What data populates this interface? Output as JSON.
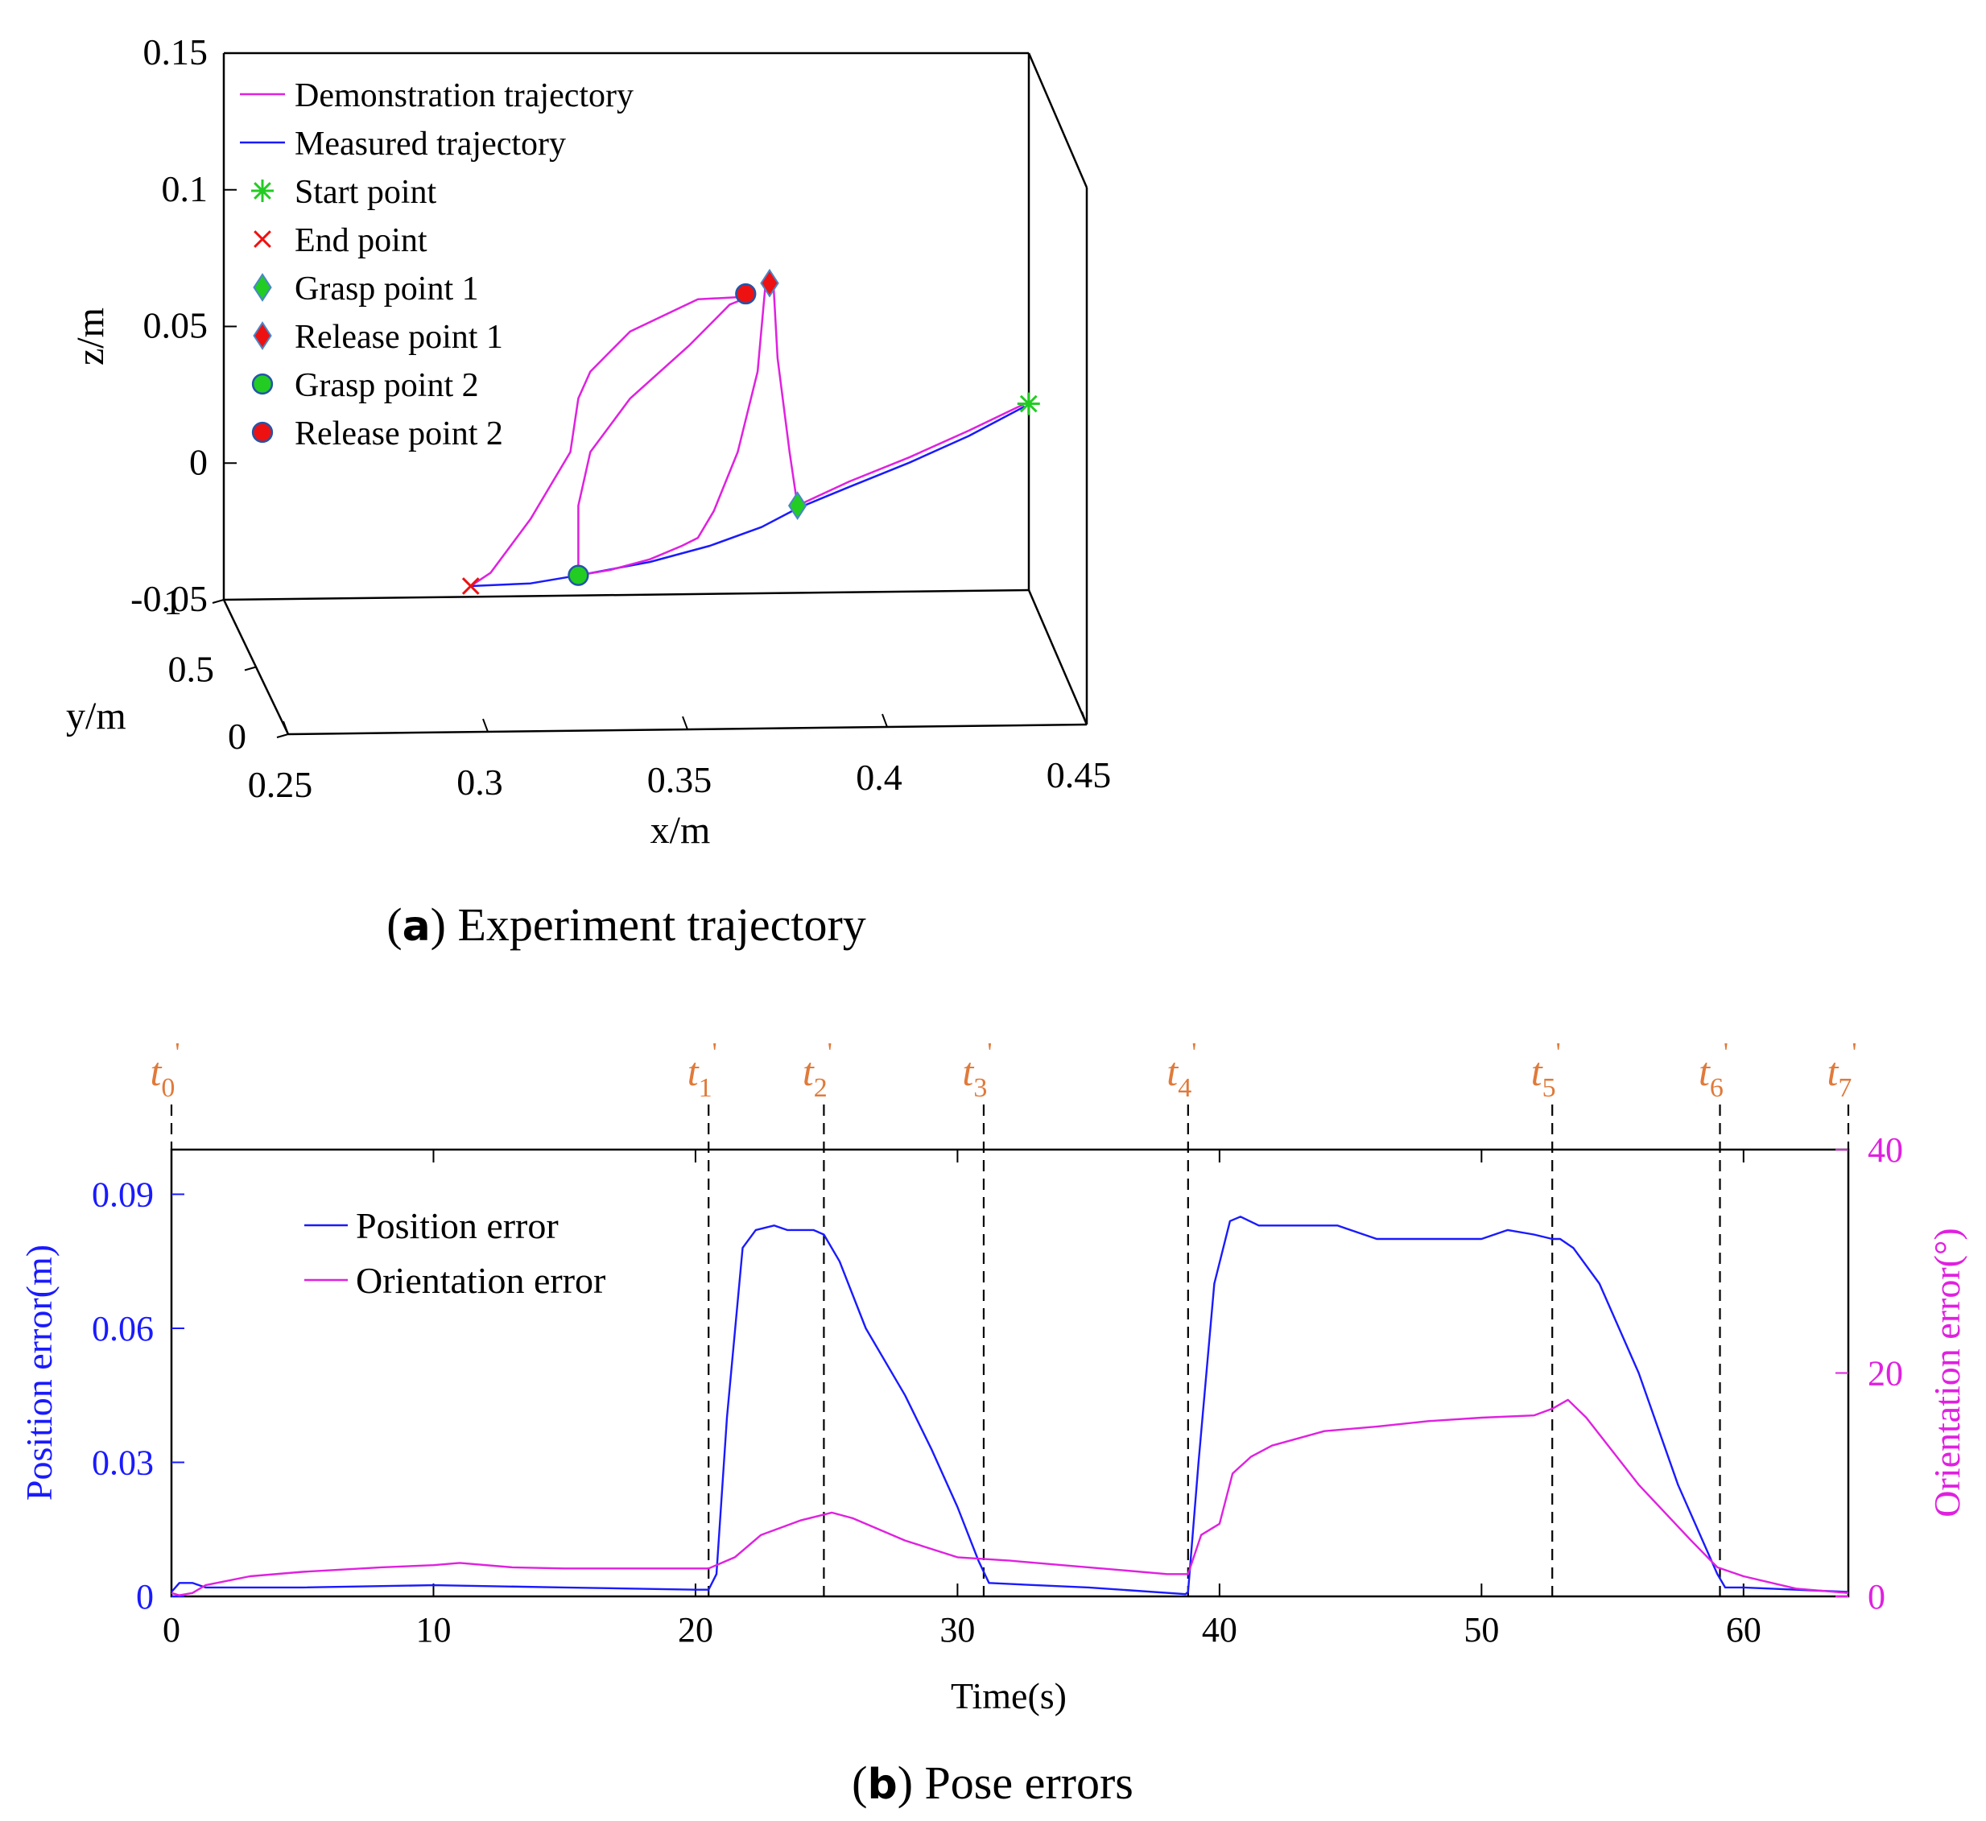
{
  "figure": {
    "caption_a_letter": "a",
    "caption_a_text": "Experiment trajectory",
    "caption_b_letter": "b",
    "caption_b_text": "Pose errors"
  },
  "colors": {
    "blue": "#1a1aff",
    "magenta": "#e020e0",
    "orange": "#e07a3a",
    "green": "#22cc22",
    "red": "#ee1111",
    "black": "#000000"
  },
  "chart_data": [
    {
      "id": "trajectory",
      "type": "line",
      "title": "Experiment trajectory",
      "xlabel": "x/m",
      "ylabel": "y/m",
      "zlabel": "z/m",
      "xlim": [
        0.25,
        0.45
      ],
      "ylim": [
        0,
        1
      ],
      "zlim": [
        -0.05,
        0.15
      ],
      "x_ticks": [
        "0.25",
        "0.3",
        "0.35",
        "0.4",
        "0.45"
      ],
      "y_ticks": [
        "0",
        "0.5",
        "1"
      ],
      "z_ticks": [
        "-0.05",
        "0",
        "0.05",
        "0.1",
        "0.15"
      ],
      "legend": [
        {
          "label": "Demonstration trajectory",
          "marker": "line",
          "color": "#e020e0"
        },
        {
          "label": "Measured trajectory",
          "marker": "line",
          "color": "#1a1aff"
        },
        {
          "label": "Start point",
          "marker": "star",
          "color": "#22cc22"
        },
        {
          "label": "End point",
          "marker": "x",
          "color": "#ee1111"
        },
        {
          "label": "Grasp point 1",
          "marker": "diamond",
          "color": "#22cc22"
        },
        {
          "label": " Release  point 1",
          "marker": "diamond",
          "color": "#ee1111"
        },
        {
          "label": "Grasp point 2",
          "marker": "circle",
          "color": "#22cc22"
        },
        {
          "label": " Release  point 2",
          "marker": "circle",
          "color": "#ee1111"
        }
      ],
      "series": [
        {
          "name": "Measured trajectory",
          "color": "#1a1aff",
          "points": [
            [
              0.295,
              -0.05
            ],
            [
              0.31,
              -0.049
            ],
            [
              0.322,
              -0.046
            ],
            [
              0.34,
              -0.041
            ],
            [
              0.355,
              -0.035
            ],
            [
              0.368,
              -0.028
            ],
            [
              0.377,
              -0.021
            ],
            [
              0.39,
              -0.013
            ],
            [
              0.405,
              -0.004
            ],
            [
              0.42,
              0.006
            ],
            [
              0.434,
              0.017
            ]
          ]
        },
        {
          "name": "Demonstration trajectory",
          "color": "#e020e0",
          "segments": [
            [
              [
                0.434,
                0.018
              ],
              [
                0.42,
                0.008
              ],
              [
                0.405,
                -0.002
              ],
              [
                0.39,
                -0.011
              ],
              [
                0.377,
                -0.02
              ]
            ],
            [
              [
                0.377,
                -0.02
              ],
              [
                0.375,
                0.0
              ],
              [
                0.372,
                0.035
              ],
              [
                0.371,
                0.062
              ],
              [
                0.369,
                0.063
              ],
              [
                0.367,
                0.03
              ],
              [
                0.362,
                0.0
              ],
              [
                0.356,
                -0.022
              ],
              [
                0.352,
                -0.032
              ],
              [
                0.348,
                -0.035
              ],
              [
                0.34,
                -0.04
              ],
              [
                0.33,
                -0.044
              ],
              [
                0.322,
                -0.046
              ]
            ],
            [
              [
                0.322,
                -0.046
              ],
              [
                0.322,
                -0.02
              ],
              [
                0.325,
                0.0
              ],
              [
                0.335,
                0.02
              ],
              [
                0.35,
                0.04
              ],
              [
                0.36,
                0.055
              ],
              [
                0.365,
                0.058
              ]
            ],
            [
              [
                0.365,
                0.058
              ],
              [
                0.352,
                0.057
              ],
              [
                0.335,
                0.045
              ],
              [
                0.325,
                0.03
              ],
              [
                0.322,
                0.02
              ],
              [
                0.32,
                0.0
              ],
              [
                0.31,
                -0.025
              ],
              [
                0.3,
                -0.045
              ],
              [
                0.295,
                -0.05
              ]
            ]
          ]
        }
      ],
      "markers": [
        {
          "name": "Start point",
          "marker": "star",
          "color": "#22cc22",
          "x": 0.435,
          "z": 0.018
        },
        {
          "name": "End point",
          "marker": "x",
          "color": "#ee1111",
          "x": 0.295,
          "z": -0.05
        },
        {
          "name": "Grasp point 1",
          "marker": "diamond",
          "color": "#22cc22",
          "x": 0.377,
          "z": -0.02
        },
        {
          "name": "Release point 1",
          "marker": "diamond",
          "color": "#ee1111",
          "x": 0.37,
          "z": 0.063
        },
        {
          "name": "Grasp point 2",
          "marker": "circle",
          "color": "#22cc22",
          "x": 0.322,
          "z": -0.046
        },
        {
          "name": "Release point 2",
          "marker": "circle",
          "color": "#ee1111",
          "x": 0.364,
          "z": 0.059
        }
      ]
    },
    {
      "id": "pose_errors",
      "type": "line",
      "title": "Pose errors",
      "xlabel": "Time(s)",
      "ylabel_left": "Position error(m)",
      "ylabel_right": "Orientation error(°)",
      "xlim": [
        0,
        64
      ],
      "ylim_left": [
        0,
        0.1
      ],
      "ylim_right": [
        0,
        40
      ],
      "x_ticks": [
        {
          "value": 0,
          "label": "0"
        },
        {
          "value": 10,
          "label": "10"
        },
        {
          "value": 20,
          "label": "20"
        },
        {
          "value": 30,
          "label": "30"
        },
        {
          "value": 40,
          "label": "40"
        },
        {
          "value": 50,
          "label": "50"
        },
        {
          "value": 60,
          "label": "60"
        }
      ],
      "y_ticks_left": [
        {
          "value": 0,
          "label": "0"
        },
        {
          "value": 0.03,
          "label": "0.03"
        },
        {
          "value": 0.06,
          "label": "0.06"
        },
        {
          "value": 0.09,
          "label": "0.09"
        }
      ],
      "y_ticks_right": [
        {
          "value": 0,
          "label": "0"
        },
        {
          "value": 20,
          "label": "20"
        },
        {
          "value": 40,
          "label": "40"
        }
      ],
      "legend": [
        {
          "label": "Position error",
          "color": "#1a1aff"
        },
        {
          "label": "Orientation error",
          "color": "#e020e0"
        }
      ],
      "events": [
        {
          "t": 0,
          "base": "t",
          "sub": "0",
          "sup": "'"
        },
        {
          "t": 20.5,
          "base": "t",
          "sub": "1",
          "sup": "'"
        },
        {
          "t": 24.9,
          "base": "t",
          "sub": "2",
          "sup": "'"
        },
        {
          "t": 31.0,
          "base": "t",
          "sub": "3",
          "sup": "'"
        },
        {
          "t": 38.8,
          "base": "t",
          "sub": "4",
          "sup": "'"
        },
        {
          "t": 52.7,
          "base": "t",
          "sub": "5",
          "sup": "'"
        },
        {
          "t": 59.1,
          "base": "t",
          "sub": "6",
          "sup": "'"
        },
        {
          "t": 64.0,
          "base": "t",
          "sub": "7",
          "sup": "'"
        }
      ],
      "series": [
        {
          "name": "Position error",
          "axis": "left",
          "color": "#1a1aff",
          "t": [
            0,
            0.3,
            0.8,
            1.3,
            2,
            5,
            10,
            15,
            20,
            20.5,
            20.8,
            21.2,
            21.8,
            22.3,
            23,
            23.5,
            24.5,
            24.9,
            25.5,
            26.5,
            28,
            29,
            30,
            30.8,
            31.2,
            33,
            35,
            38.7,
            38.8,
            39.2,
            39.8,
            40.4,
            40.8,
            41.5,
            43,
            44.5,
            46,
            47,
            48,
            50,
            51,
            52,
            52.7,
            53,
            53.5,
            54.5,
            56,
            57.5,
            59,
            59.3,
            60,
            62,
            64
          ],
          "values": [
            0.001,
            0.003,
            0.003,
            0.002,
            0.002,
            0.002,
            0.0025,
            0.002,
            0.0015,
            0.0015,
            0.005,
            0.04,
            0.078,
            0.082,
            0.083,
            0.082,
            0.082,
            0.081,
            0.075,
            0.06,
            0.045,
            0.033,
            0.02,
            0.008,
            0.003,
            0.0025,
            0.002,
            0.0005,
            0.001,
            0.03,
            0.07,
            0.084,
            0.085,
            0.083,
            0.083,
            0.083,
            0.08,
            0.08,
            0.08,
            0.08,
            0.082,
            0.081,
            0.08,
            0.08,
            0.078,
            0.07,
            0.05,
            0.025,
            0.005,
            0.002,
            0.002,
            0.0015,
            0.001
          ]
        },
        {
          "name": "Orientation error",
          "axis": "right",
          "color": "#e020e0",
          "t": [
            0,
            0.3,
            0.8,
            1.3,
            3,
            5,
            8,
            10,
            11,
            13,
            15,
            18,
            20.5,
            21.5,
            22.5,
            24,
            25.2,
            26,
            28,
            30,
            32,
            34,
            36,
            38,
            38.8,
            39.3,
            40,
            40.5,
            41.2,
            42,
            44,
            46,
            48,
            50,
            52,
            52.7,
            53.3,
            54,
            56,
            58,
            59,
            60,
            62,
            64
          ],
          "values": [
            0.3,
            0.1,
            0.3,
            1.0,
            1.8,
            2.2,
            2.6,
            2.8,
            3.0,
            2.6,
            2.5,
            2.5,
            2.5,
            3.5,
            5.5,
            6.8,
            7.5,
            7.0,
            5.0,
            3.5,
            3.2,
            2.8,
            2.4,
            2.0,
            2.0,
            5.5,
            6.5,
            11.0,
            12.5,
            13.5,
            14.8,
            15.2,
            15.7,
            16.0,
            16.2,
            16.8,
            17.6,
            16.0,
            10.0,
            5.0,
            2.6,
            1.8,
            0.7,
            0.3
          ]
        }
      ]
    }
  ]
}
